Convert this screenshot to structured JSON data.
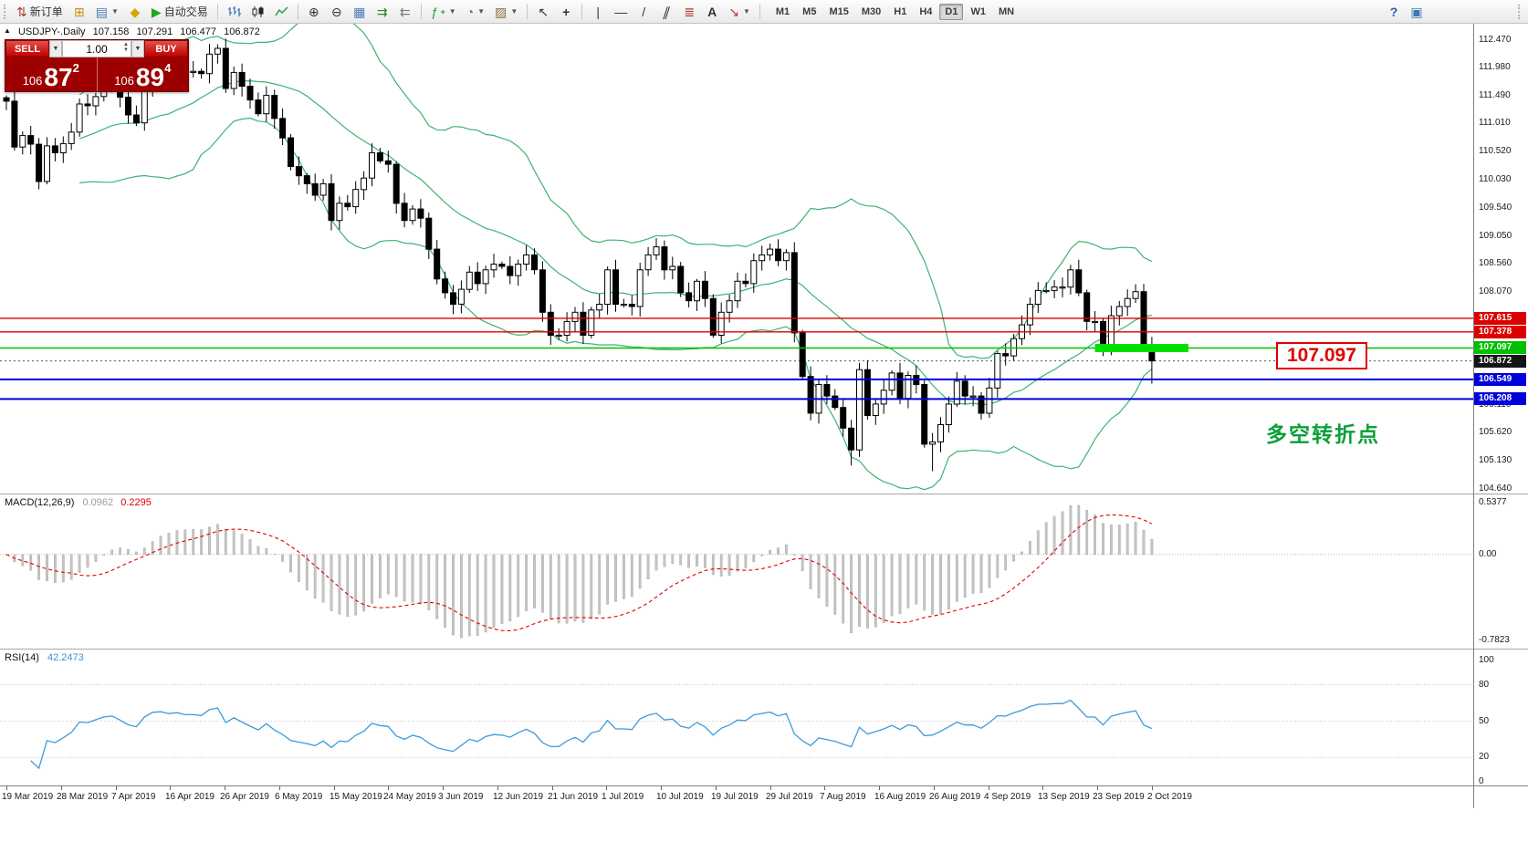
{
  "toolbar": {
    "new_order_label": "新订单",
    "autotrading_label": "自动交易",
    "timeframes": [
      "M1",
      "M5",
      "M15",
      "M30",
      "H1",
      "H4",
      "D1",
      "W1",
      "MN"
    ],
    "active_timeframe": "D1",
    "icons": {
      "new_order": "⇅",
      "new_chart": "⊞",
      "profiles": "▤",
      "metaeditor": "◆",
      "autotrading": "▶",
      "zoom_in": "⊕",
      "zoom_out": "⊖",
      "grid": "▦",
      "autoscroll": "⇉",
      "chart_shift": "⇇",
      "indicators": "ƒ",
      "plus": "+",
      "periods": "◔",
      "templates": "▨",
      "cursor": "↖",
      "crosshair": "+",
      "vline": "|",
      "hline": "―",
      "trendline": "/",
      "channel": "∥",
      "fibonacci": "≣",
      "text_tool": "A",
      "arrow_tool": "↘",
      "caret_down": "▼",
      "caret_up": "▲",
      "help": "?",
      "docs": "▣"
    }
  },
  "chart_header": {
    "collapse_arrow": "▲",
    "symbol": "USDJPY-.Daily",
    "open": "107.158",
    "high": "107.291",
    "low": "106.477",
    "close": "106.872"
  },
  "trade_panel": {
    "sell_label": "SELL",
    "buy_label": "BUY",
    "volume": "1.00",
    "sell_price_base": "106",
    "sell_price_big": "87",
    "sell_price_sup": "2",
    "buy_price_base": "106",
    "buy_price_big": "89",
    "buy_price_sup": "4"
  },
  "annotations": {
    "level_label": "107.097",
    "turning_point": "多空转折点"
  },
  "macd_panel": {
    "title": "MACD(12,26,9)",
    "main_value": "0.0962",
    "signal_value": "0.2295",
    "scale_top": "0.5377",
    "scale_zero": "0.00",
    "scale_bottom": "-0.7823"
  },
  "rsi_panel": {
    "title": "RSI(14)",
    "value": "42.2473",
    "scale": [
      "100",
      "80",
      "50",
      "20",
      "0"
    ]
  },
  "price_axis": {
    "gridline_labels": [
      "112.470",
      "111.980",
      "111.490",
      "111.010",
      "110.520",
      "110.030",
      "109.540",
      "109.050",
      "108.560",
      "108.070",
      "106.110",
      "105.620",
      "105.130",
      "104.640"
    ],
    "tags": [
      {
        "label": "107.615",
        "price": 107.615,
        "bg": "#dd0000"
      },
      {
        "label": "107.378",
        "price": 107.378,
        "bg": "#dd0000"
      },
      {
        "label": "107.097",
        "price": 107.097,
        "bg": "#00c000"
      },
      {
        "label": "106.872",
        "price": 106.872,
        "bg": "#141414"
      },
      {
        "label": "106.549",
        "price": 106.549,
        "bg": "#0000dd"
      },
      {
        "label": "106.208",
        "price": 106.208,
        "bg": "#0000dd"
      }
    ]
  },
  "time_axis": [
    "19 Mar 2019",
    "28 Mar 2019",
    "7 Apr 2019",
    "16 Apr 2019",
    "26 Apr 2019",
    "6 May 2019",
    "15 May 2019",
    "24 May 2019",
    "3 Jun 2019",
    "12 Jun 2019",
    "21 Jun 2019",
    "1 Jul 2019",
    "10 Jul 2019",
    "19 Jul 2019",
    "29 Jul 2019",
    "7 Aug 2019",
    "16 Aug 2019",
    "26 Aug 2019",
    "4 Sep 2019",
    "13 Sep 2019",
    "23 Sep 2019",
    "2 Oct 2019"
  ],
  "chart_data": {
    "type": "candlestick",
    "symbol": "USDJPY-",
    "timeframe": "Daily",
    "price_range": [
      104.56,
      112.75
    ],
    "closes": [
      111.4,
      110.6,
      110.8,
      110.65,
      110.0,
      110.62,
      110.5,
      110.66,
      110.86,
      111.35,
      111.32,
      111.48,
      111.66,
      111.72,
      111.47,
      111.16,
      111.02,
      111.66,
      112.02,
      112.06,
      111.96,
      112.02,
      111.92,
      111.92,
      111.88,
      112.22,
      112.32,
      111.62,
      111.9,
      111.66,
      111.42,
      111.18,
      111.5,
      111.1,
      110.76,
      110.26,
      110.1,
      109.96,
      109.76,
      109.96,
      109.32,
      109.62,
      109.56,
      109.86,
      110.06,
      110.5,
      110.36,
      110.3,
      109.62,
      109.32,
      109.52,
      109.36,
      108.82,
      108.3,
      108.06,
      107.86,
      108.12,
      108.42,
      108.22,
      108.46,
      108.56,
      108.52,
      108.36,
      108.56,
      108.72,
      108.46,
      107.72,
      107.32,
      107.32,
      107.56,
      107.72,
      107.32,
      107.76,
      107.86,
      108.46,
      107.86,
      107.86,
      107.82,
      108.46,
      108.72,
      108.86,
      108.46,
      108.52,
      108.06,
      107.92,
      108.26,
      107.96,
      107.32,
      107.72,
      107.92,
      108.26,
      108.22,
      108.62,
      108.72,
      108.82,
      108.62,
      108.76,
      107.36,
      106.6,
      105.96,
      106.46,
      106.26,
      106.06,
      105.7,
      105.32,
      106.72,
      105.92,
      106.12,
      106.36,
      106.66,
      106.22,
      106.62,
      106.46,
      105.42,
      105.46,
      105.76,
      106.12,
      106.52,
      106.26,
      106.26,
      105.96,
      106.4,
      107.0,
      106.96,
      107.26,
      107.5,
      107.86,
      108.1,
      108.1,
      108.16,
      108.16,
      108.46,
      108.06,
      107.56,
      107.56,
      107.06,
      107.66,
      107.82,
      107.96,
      108.08,
      107.16,
      106.872
    ],
    "overrides": {
      "104": {
        "low": 105.05
      },
      "114": {
        "low": 104.95
      },
      "141": {
        "open": 107.158,
        "high": 107.291,
        "low": 106.477,
        "close": 106.872
      }
    },
    "levels": [
      {
        "price": 107.615,
        "color": "#dd0000",
        "width": 1.4
      },
      {
        "price": 107.378,
        "color": "#dd0000",
        "width": 1.4
      },
      {
        "price": 107.097,
        "color": "#00c000",
        "width": 1.4
      },
      {
        "price": 106.549,
        "color": "#0000dd",
        "width": 2
      },
      {
        "price": 106.208,
        "color": "#0000dd",
        "width": 2
      }
    ],
    "current_price": 106.872,
    "highlight_segment": {
      "price": 107.097,
      "from": 134,
      "to": 145.5,
      "color": "#00e000",
      "thickness": 9
    },
    "bollinger": {
      "period": 20,
      "deviation": 2,
      "color": "#3CB371"
    },
    "macd": {
      "fast": 12,
      "slow": 26,
      "signal": 9,
      "hist_color": "#c4c4c4",
      "signal_color": "#e00000"
    },
    "rsi": {
      "period": 14,
      "color": "#3d9bdc",
      "levels": [
        20,
        50,
        80
      ]
    }
  }
}
